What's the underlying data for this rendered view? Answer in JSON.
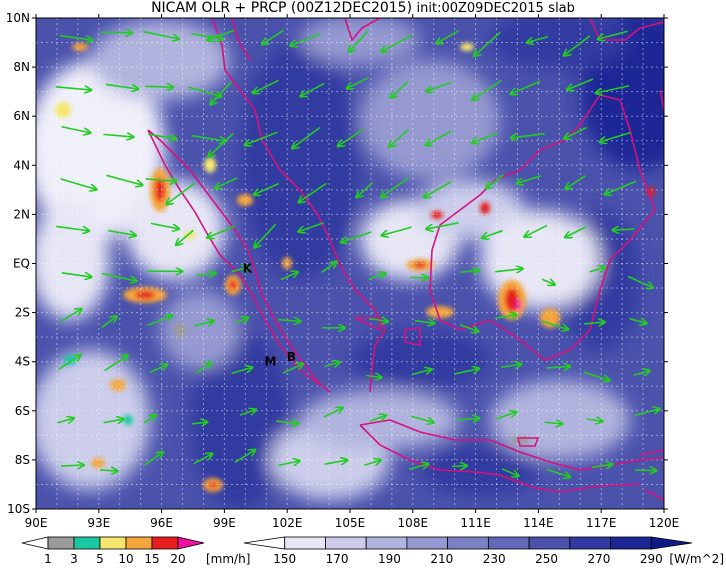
{
  "title": {
    "main": "NICAM OLR + PRCP (00Z12DEC2015)",
    "init": "init:00Z09DEC2015",
    "tag": "slab"
  },
  "map": {
    "lon_range": [
      90,
      120
    ],
    "lat_range": [
      -10,
      10
    ],
    "lat_labels": [
      "10N",
      "8N",
      "6N",
      "4N",
      "2N",
      "EQ",
      "2S",
      "4S",
      "6S",
      "8S",
      "10S"
    ],
    "lat_values": [
      10,
      8,
      6,
      4,
      2,
      0,
      -2,
      -4,
      -6,
      -8,
      -10
    ],
    "lon_labels": [
      "90E",
      "93E",
      "96E",
      "99E",
      "102E",
      "105E",
      "108E",
      "111E",
      "114E",
      "117E",
      "120E"
    ],
    "lon_values": [
      90,
      93,
      96,
      99,
      102,
      105,
      108,
      111,
      114,
      117,
      120
    ],
    "coast_color": "#d6127f",
    "wind_color": "#22cc22",
    "station_markers": [
      {
        "label": "K",
        "lon": 100.1,
        "lat": -0.2
      },
      {
        "label": "M",
        "lon": 101.2,
        "lat": -4.0
      },
      {
        "label": "B",
        "lon": 102.2,
        "lat": -3.8
      }
    ]
  },
  "precip_colorbar": {
    "labels": [
      "1",
      "3",
      "5",
      "10",
      "15",
      "20"
    ],
    "unit": "[mm/h]",
    "colors": [
      "#ffffff",
      "#9b9b9b",
      "#19c8a0",
      "#f5e66e",
      "#f5a53c",
      "#e61e1e",
      "#ee10a0"
    ]
  },
  "olr_colorbar": {
    "labels": [
      "150",
      "170",
      "190",
      "210",
      "230",
      "250",
      "270",
      "290"
    ],
    "unit": "[W/m^2]",
    "colors": [
      "#ffffff",
      "#e6e6f5",
      "#cbcdea",
      "#b0b3dd",
      "#9599d0",
      "#7c81c4",
      "#6269b8",
      "#4a52ac",
      "#313aa0",
      "#1c2695",
      "#0e1a88"
    ]
  }
}
